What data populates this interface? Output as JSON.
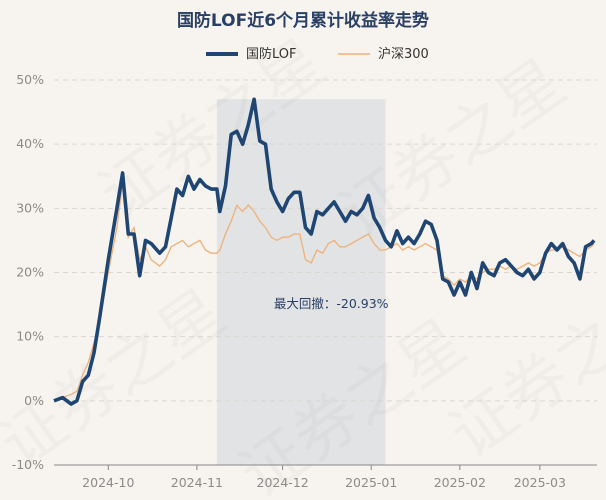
{
  "chart_data": {
    "type": "line",
    "title": "国防LOF近6个月累计收益率走势",
    "xlabel": "",
    "ylabel": "",
    "ylim": [
      -10,
      50
    ],
    "y_ticks": [
      "50%",
      "40%",
      "30%",
      "20%",
      "10%",
      "0%",
      "-10%"
    ],
    "y_tick_values": [
      50,
      40,
      30,
      20,
      10,
      0,
      -10
    ],
    "x_tick_labels": [
      "2024-10",
      "2024-11",
      "2024-12",
      "2025-01",
      "2025-02",
      "2025-03"
    ],
    "x_tick_dates": [
      "2024-10-01",
      "2024-11-01",
      "2024-12-01",
      "2025-01-01",
      "2025-02-01",
      "2025-03-01"
    ],
    "x_range": [
      "2024-09-12",
      "2025-03-21"
    ],
    "grid": "horizontal dashed",
    "legend_position": "top",
    "watermark": "证券之星",
    "annotation": {
      "text": "最大回撤：-20.93%",
      "shade_start": "2024-11-08",
      "shade_end": "2025-01-06"
    },
    "series": [
      {
        "name": "国防LOF",
        "color": "#1f4673",
        "values": [
          [
            "2024-09-12",
            0.0
          ],
          [
            "2024-09-15",
            0.5
          ],
          [
            "2024-09-18",
            -0.5
          ],
          [
            "2024-09-20",
            0.0
          ],
          [
            "2024-09-22",
            3.0
          ],
          [
            "2024-09-24",
            4.0
          ],
          [
            "2024-09-26",
            7.5
          ],
          [
            "2024-09-28",
            13.0
          ],
          [
            "2024-10-01",
            22.0
          ],
          [
            "2024-10-04",
            30.0
          ],
          [
            "2024-10-06",
            35.5
          ],
          [
            "2024-10-08",
            26.0
          ],
          [
            "2024-10-10",
            26.0
          ],
          [
            "2024-10-12",
            19.5
          ],
          [
            "2024-10-14",
            25.0
          ],
          [
            "2024-10-16",
            24.5
          ],
          [
            "2024-10-19",
            23.0
          ],
          [
            "2024-10-21",
            24.0
          ],
          [
            "2024-10-23",
            28.5
          ],
          [
            "2024-10-25",
            33.0
          ],
          [
            "2024-10-27",
            32.0
          ],
          [
            "2024-10-29",
            35.0
          ],
          [
            "2024-10-31",
            33.0
          ],
          [
            "2024-11-02",
            34.5
          ],
          [
            "2024-11-04",
            33.5
          ],
          [
            "2024-11-06",
            33.0
          ],
          [
            "2024-11-08",
            33.0
          ],
          [
            "2024-11-09",
            29.5
          ],
          [
            "2024-11-11",
            33.5
          ],
          [
            "2024-11-13",
            41.5
          ],
          [
            "2024-11-15",
            42.0
          ],
          [
            "2024-11-17",
            40.0
          ],
          [
            "2024-11-19",
            43.0
          ],
          [
            "2024-11-21",
            47.0
          ],
          [
            "2024-11-23",
            40.5
          ],
          [
            "2024-11-25",
            40.0
          ],
          [
            "2024-11-27",
            33.0
          ],
          [
            "2024-11-29",
            31.0
          ],
          [
            "2024-12-01",
            29.5
          ],
          [
            "2024-12-03",
            31.5
          ],
          [
            "2024-12-05",
            32.5
          ],
          [
            "2024-12-07",
            32.5
          ],
          [
            "2024-12-09",
            27.0
          ],
          [
            "2024-12-11",
            26.0
          ],
          [
            "2024-12-13",
            29.5
          ],
          [
            "2024-12-15",
            29.0
          ],
          [
            "2024-12-17",
            30.0
          ],
          [
            "2024-12-19",
            31.0
          ],
          [
            "2024-12-21",
            29.5
          ],
          [
            "2024-12-23",
            28.0
          ],
          [
            "2024-12-25",
            29.5
          ],
          [
            "2024-12-27",
            29.0
          ],
          [
            "2024-12-29",
            30.0
          ],
          [
            "2024-12-31",
            32.0
          ],
          [
            "2025-01-02",
            28.5
          ],
          [
            "2025-01-04",
            27.0
          ],
          [
            "2025-01-06",
            25.0
          ],
          [
            "2025-01-08",
            24.0
          ],
          [
            "2025-01-10",
            26.5
          ],
          [
            "2025-01-12",
            24.5
          ],
          [
            "2025-01-14",
            25.5
          ],
          [
            "2025-01-16",
            24.5
          ],
          [
            "2025-01-18",
            26.0
          ],
          [
            "2025-01-20",
            28.0
          ],
          [
            "2025-01-22",
            27.5
          ],
          [
            "2025-01-24",
            25.0
          ],
          [
            "2025-01-26",
            19.0
          ],
          [
            "2025-01-28",
            18.5
          ],
          [
            "2025-01-30",
            16.5
          ],
          [
            "2025-02-01",
            18.5
          ],
          [
            "2025-02-03",
            16.5
          ],
          [
            "2025-02-05",
            20.0
          ],
          [
            "2025-02-07",
            17.5
          ],
          [
            "2025-02-09",
            21.5
          ],
          [
            "2025-02-11",
            20.0
          ],
          [
            "2025-02-13",
            19.5
          ],
          [
            "2025-02-15",
            21.5
          ],
          [
            "2025-02-17",
            22.0
          ],
          [
            "2025-02-19",
            21.0
          ],
          [
            "2025-02-21",
            20.0
          ],
          [
            "2025-02-23",
            19.5
          ],
          [
            "2025-02-25",
            20.5
          ],
          [
            "2025-02-27",
            19.0
          ],
          [
            "2025-03-01",
            20.0
          ],
          [
            "2025-03-03",
            23.0
          ],
          [
            "2025-03-05",
            24.5
          ],
          [
            "2025-03-07",
            23.5
          ],
          [
            "2025-03-09",
            24.5
          ],
          [
            "2025-03-11",
            22.5
          ],
          [
            "2025-03-13",
            21.5
          ],
          [
            "2025-03-15",
            19.0
          ],
          [
            "2025-03-17",
            24.0
          ],
          [
            "2025-03-19",
            24.5
          ],
          [
            "2025-03-20",
            25.0
          ]
        ]
      },
      {
        "name": "沪深300",
        "color": "#f0b07a",
        "values": [
          [
            "2024-09-12",
            0.0
          ],
          [
            "2024-09-15",
            0.5
          ],
          [
            "2024-09-18",
            1.0
          ],
          [
            "2024-09-20",
            1.5
          ],
          [
            "2024-09-22",
            4.0
          ],
          [
            "2024-09-24",
            6.0
          ],
          [
            "2024-09-26",
            9.0
          ],
          [
            "2024-09-28",
            12.5
          ],
          [
            "2024-10-01",
            20.0
          ],
          [
            "2024-10-04",
            27.0
          ],
          [
            "2024-10-06",
            34.0
          ],
          [
            "2024-10-08",
            25.5
          ],
          [
            "2024-10-10",
            27.0
          ],
          [
            "2024-10-12",
            22.0
          ],
          [
            "2024-10-14",
            24.0
          ],
          [
            "2024-10-16",
            22.0
          ],
          [
            "2024-10-19",
            21.0
          ],
          [
            "2024-10-21",
            22.0
          ],
          [
            "2024-10-23",
            24.0
          ],
          [
            "2024-10-25",
            24.5
          ],
          [
            "2024-10-27",
            25.0
          ],
          [
            "2024-10-29",
            24.0
          ],
          [
            "2024-10-31",
            24.5
          ],
          [
            "2024-11-02",
            25.0
          ],
          [
            "2024-11-04",
            23.5
          ],
          [
            "2024-11-06",
            23.0
          ],
          [
            "2024-11-08",
            23.0
          ],
          [
            "2024-11-09",
            23.5
          ],
          [
            "2024-11-11",
            26.0
          ],
          [
            "2024-11-13",
            28.0
          ],
          [
            "2024-11-15",
            30.5
          ],
          [
            "2024-11-17",
            29.5
          ],
          [
            "2024-11-19",
            30.5
          ],
          [
            "2024-11-21",
            29.5
          ],
          [
            "2024-11-23",
            28.0
          ],
          [
            "2024-11-25",
            27.0
          ],
          [
            "2024-11-27",
            25.5
          ],
          [
            "2024-11-29",
            25.0
          ],
          [
            "2024-12-01",
            25.5
          ],
          [
            "2024-12-03",
            25.5
          ],
          [
            "2024-12-05",
            26.0
          ],
          [
            "2024-12-07",
            26.0
          ],
          [
            "2024-12-09",
            22.0
          ],
          [
            "2024-12-11",
            21.5
          ],
          [
            "2024-12-13",
            23.5
          ],
          [
            "2024-12-15",
            23.0
          ],
          [
            "2024-12-17",
            24.5
          ],
          [
            "2024-12-19",
            25.0
          ],
          [
            "2024-12-21",
            24.0
          ],
          [
            "2024-12-23",
            24.0
          ],
          [
            "2024-12-25",
            24.5
          ],
          [
            "2024-12-27",
            25.0
          ],
          [
            "2024-12-29",
            25.5
          ],
          [
            "2024-12-31",
            26.0
          ],
          [
            "2025-01-02",
            24.5
          ],
          [
            "2025-01-04",
            23.5
          ],
          [
            "2025-01-06",
            23.5
          ],
          [
            "2025-01-08",
            24.0
          ],
          [
            "2025-01-10",
            24.5
          ],
          [
            "2025-01-12",
            23.5
          ],
          [
            "2025-01-14",
            24.0
          ],
          [
            "2025-01-16",
            23.5
          ],
          [
            "2025-01-18",
            24.0
          ],
          [
            "2025-01-20",
            24.5
          ],
          [
            "2025-01-22",
            24.0
          ],
          [
            "2025-01-24",
            23.5
          ],
          [
            "2025-01-26",
            19.5
          ],
          [
            "2025-01-28",
            19.0
          ],
          [
            "2025-01-30",
            18.0
          ],
          [
            "2025-02-01",
            19.0
          ],
          [
            "2025-02-03",
            18.5
          ],
          [
            "2025-02-05",
            19.5
          ],
          [
            "2025-02-07",
            19.0
          ],
          [
            "2025-02-09",
            20.0
          ],
          [
            "2025-02-11",
            20.5
          ],
          [
            "2025-02-13",
            20.5
          ],
          [
            "2025-02-15",
            21.0
          ],
          [
            "2025-02-17",
            20.5
          ],
          [
            "2025-02-19",
            21.0
          ],
          [
            "2025-02-21",
            20.5
          ],
          [
            "2025-02-23",
            21.0
          ],
          [
            "2025-02-25",
            21.5
          ],
          [
            "2025-02-27",
            21.0
          ],
          [
            "2025-03-01",
            21.5
          ],
          [
            "2025-03-03",
            23.0
          ],
          [
            "2025-03-05",
            23.5
          ],
          [
            "2025-03-07",
            23.5
          ],
          [
            "2025-03-09",
            24.0
          ],
          [
            "2025-03-11",
            23.5
          ],
          [
            "2025-03-13",
            23.0
          ],
          [
            "2025-03-15",
            22.5
          ],
          [
            "2025-03-17",
            23.5
          ],
          [
            "2025-03-19",
            24.0
          ],
          [
            "2025-03-20",
            24.5
          ]
        ]
      }
    ]
  }
}
